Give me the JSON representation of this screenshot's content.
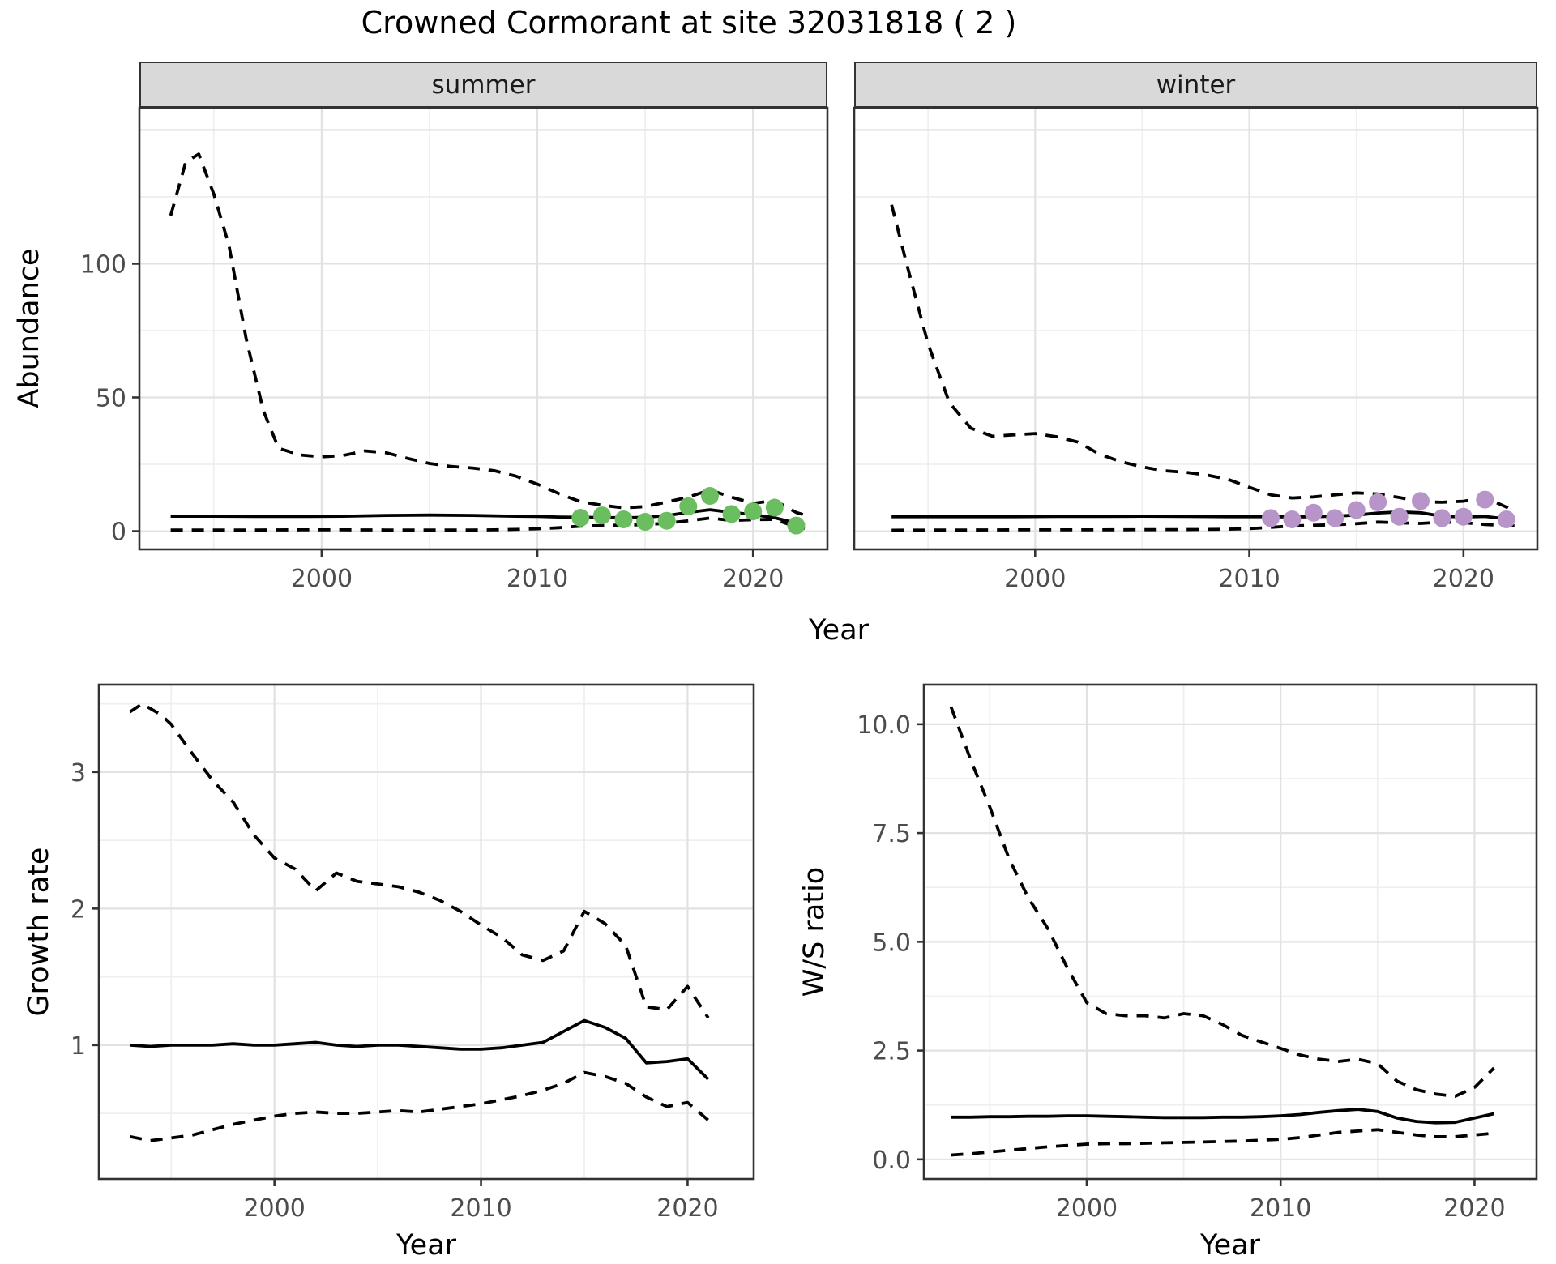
{
  "title": "Crowned Cormorant at site 32031818 ( 2 )",
  "colors": {
    "line": "#000000",
    "strip_bg": "#d9d9d9",
    "panel_border": "#333333",
    "grid_major": "#e2e2e2",
    "grid_minor": "#efefef",
    "tick_text": "#4d4d4d",
    "observation_summer": "#6abe60",
    "observation_winter": "#b795c8"
  },
  "chart_data": [
    {
      "id": "abundance_summer",
      "type": "line",
      "facet": "summer",
      "xlabel": "Year",
      "ylabel": "Abundance",
      "xlim": [
        1991.55,
        2023.45
      ],
      "ylim": [
        -6.8,
        158.3
      ],
      "x_ticks": [
        2000,
        2010,
        2020
      ],
      "x_minor": [
        1995,
        2005,
        2015
      ],
      "y_ticks": [
        0,
        50,
        100
      ],
      "y_tick_labels": [
        "0",
        "50",
        "100"
      ],
      "y_grid_major": [
        0,
        50,
        100,
        150
      ],
      "y_grid_minor": [
        25,
        75,
        125
      ],
      "grid": true,
      "legend": "none",
      "series": [
        {
          "name": "upper_ci",
          "style": "dashed",
          "x": [
            1993,
            1993.7,
            1994.3,
            1995,
            1995.7,
            1996.5,
            1997.3,
            1998,
            1999,
            2000,
            2001,
            2002,
            2003,
            2004,
            2005,
            2006,
            2007,
            2008,
            2009,
            2010,
            2011,
            2012,
            2013,
            2014,
            2015,
            2016,
            2017,
            2018,
            2019,
            2020,
            2021,
            2022,
            2022.4
          ],
          "y": [
            118,
            138,
            141,
            126,
            107,
            72,
            45,
            31,
            28.5,
            27.8,
            28.3,
            30,
            29.3,
            27.2,
            25.3,
            24.2,
            23.6,
            22.6,
            20.6,
            17.6,
            14,
            11,
            9.7,
            8.7,
            9.2,
            10.9,
            12.7,
            15.4,
            12.7,
            10.4,
            11.5,
            7,
            6
          ]
        },
        {
          "name": "median",
          "style": "solid",
          "x": [
            1993,
            1995,
            1997,
            1999,
            2001,
            2003,
            2005,
            2007,
            2009,
            2010,
            2011,
            2012,
            2013,
            2014,
            2015,
            2016,
            2017,
            2018,
            2019,
            2020,
            2021,
            2022,
            2022.4
          ],
          "y": [
            5.6,
            5.6,
            5.5,
            5.5,
            5.6,
            5.9,
            6.0,
            5.9,
            5.6,
            5.5,
            5.3,
            5.2,
            5.1,
            5.0,
            5.2,
            5.8,
            7.0,
            8.0,
            7.0,
            6.2,
            5.0,
            3.0,
            2.6
          ]
        },
        {
          "name": "lower_ci",
          "style": "dashed",
          "x": [
            1993,
            1995,
            1997,
            1999,
            2001,
            2003,
            2005,
            2007,
            2008,
            2009,
            2010,
            2011,
            2012,
            2013,
            2014,
            2015,
            2016,
            2017,
            2018,
            2019,
            2020,
            2021,
            2022,
            2022.4
          ],
          "y": [
            0.4,
            0.45,
            0.45,
            0.5,
            0.5,
            0.45,
            0.4,
            0.45,
            0.5,
            0.65,
            0.9,
            1.3,
            1.9,
            2.1,
            2.3,
            2.4,
            3.0,
            3.9,
            4.9,
            4.0,
            4.3,
            4.4,
            1.6,
            1.1
          ]
        },
        {
          "name": "observations",
          "style": "points",
          "color": "#6abe60",
          "x": [
            2012,
            2013,
            2014,
            2015,
            2016,
            2017,
            2018,
            2019,
            2020,
            2021,
            2022
          ],
          "y": [
            5.0,
            5.9,
            4.4,
            3.5,
            3.9,
            9.3,
            13.2,
            6.4,
            7.4,
            8.8,
            2.1
          ]
        }
      ]
    },
    {
      "id": "abundance_winter",
      "type": "line",
      "facet": "winter",
      "xlabel": "Year",
      "ylabel": "Abundance",
      "xlim": [
        1991.55,
        2023.45
      ],
      "ylim": [
        -6.8,
        158.3
      ],
      "x_ticks": [
        2000,
        2010,
        2020
      ],
      "x_minor": [
        1995,
        2005,
        2015
      ],
      "y_ticks": [
        0,
        50,
        100
      ],
      "y_tick_labels": [
        "0",
        "50",
        "100"
      ],
      "y_grid_major": [
        0,
        50,
        100,
        150
      ],
      "y_grid_minor": [
        25,
        75,
        125
      ],
      "grid": true,
      "legend": "none",
      "series": [
        {
          "name": "upper_ci",
          "style": "dashed",
          "x": [
            1993.3,
            1994,
            1995,
            1996,
            1997,
            1998,
            1999,
            2000,
            2001,
            2002,
            2003,
            2004,
            2005,
            2006,
            2007,
            2008,
            2009,
            2010,
            2011,
            2012,
            2013,
            2014,
            2015,
            2016,
            2017,
            2018,
            2019,
            2020,
            2021,
            2022,
            2022.4
          ],
          "y": [
            122,
            100,
            70,
            48,
            38.5,
            35.5,
            36,
            36.5,
            35.3,
            33.3,
            28.8,
            26,
            24,
            22.6,
            22,
            21,
            19.4,
            16.4,
            13.6,
            12.4,
            12.8,
            13.6,
            14.3,
            13.9,
            12.6,
            11,
            10.8,
            11.2,
            12.6,
            9,
            7.3
          ]
        },
        {
          "name": "median",
          "style": "solid",
          "x": [
            1993.3,
            1995,
            1997,
            1999,
            2001,
            2003,
            2005,
            2007,
            2009,
            2011,
            2012,
            2013,
            2014,
            2015,
            2016,
            2017,
            2018,
            2019,
            2020,
            2021,
            2022,
            2022.4
          ],
          "y": [
            5.4,
            5.4,
            5.4,
            5.4,
            5.5,
            5.5,
            5.6,
            5.5,
            5.4,
            5.4,
            5.3,
            5.4,
            5.6,
            6.0,
            6.8,
            7.2,
            6.9,
            5.6,
            5.3,
            5.5,
            4.6,
            4.4
          ]
        },
        {
          "name": "lower_ci",
          "style": "dashed",
          "x": [
            1993.3,
            1995,
            1997,
            1999,
            2001,
            2003,
            2005,
            2007,
            2008,
            2009,
            2010,
            2011,
            2012,
            2013,
            2014,
            2015,
            2016,
            2017,
            2018,
            2019,
            2020,
            2021,
            2022,
            2022.4
          ],
          "y": [
            0.35,
            0.4,
            0.45,
            0.5,
            0.5,
            0.5,
            0.55,
            0.6,
            0.65,
            0.75,
            0.95,
            1.4,
            2.0,
            2.2,
            2.4,
            2.8,
            3.4,
            3.1,
            2.9,
            3.4,
            3.2,
            2.5,
            2.1,
            2.0
          ]
        },
        {
          "name": "observations",
          "style": "points",
          "color": "#b795c8",
          "x": [
            2011,
            2012,
            2013,
            2014,
            2015,
            2016,
            2017,
            2018,
            2019,
            2020,
            2021,
            2022
          ],
          "y": [
            4.9,
            4.4,
            6.9,
            4.9,
            7.9,
            10.8,
            5.4,
            11.3,
            4.9,
            5.4,
            11.8,
            4.4
          ]
        }
      ]
    },
    {
      "id": "growth_rate",
      "type": "line",
      "facet": "",
      "xlabel": "Year",
      "ylabel": "Growth rate",
      "xlim": [
        1991.5,
        2023.2
      ],
      "ylim": [
        0.02,
        3.64
      ],
      "x_ticks": [
        2000,
        2010,
        2020
      ],
      "x_minor": [
        1995,
        2005,
        2015
      ],
      "y_ticks": [
        1,
        2,
        3
      ],
      "y_tick_labels": [
        "1",
        "2",
        "3"
      ],
      "y_grid_major": [
        1,
        2,
        3
      ],
      "y_grid_minor": [
        0.5,
        1.5,
        2.5,
        3.5
      ],
      "grid": true,
      "legend": "none",
      "series": [
        {
          "name": "upper_ci",
          "style": "dashed",
          "x": [
            1993,
            1993.6,
            1994.5,
            1995,
            1996,
            1997,
            1998,
            1999,
            2000,
            2001,
            2002,
            2003,
            2004,
            2005,
            2006,
            2007,
            2008,
            2009,
            2010,
            2011,
            2012,
            2013,
            2014,
            2015,
            2016,
            2017,
            2018,
            2019,
            2020,
            2021
          ],
          "y": [
            3.44,
            3.5,
            3.42,
            3.35,
            3.14,
            2.94,
            2.78,
            2.54,
            2.37,
            2.29,
            2.13,
            2.26,
            2.2,
            2.18,
            2.16,
            2.12,
            2.06,
            1.98,
            1.88,
            1.79,
            1.66,
            1.62,
            1.69,
            1.98,
            1.89,
            1.73,
            1.28,
            1.26,
            1.43,
            1.2
          ]
        },
        {
          "name": "median",
          "style": "solid",
          "x": [
            1993,
            1994,
            1995,
            1996,
            1997,
            1998,
            1999,
            2000,
            2001,
            2002,
            2003,
            2004,
            2005,
            2006,
            2007,
            2008,
            2009,
            2010,
            2011,
            2012,
            2013,
            2014,
            2015,
            2016,
            2017,
            2018,
            2019,
            2020,
            2021
          ],
          "y": [
            1.0,
            0.99,
            1.0,
            1.0,
            1.0,
            1.01,
            1.0,
            1.0,
            1.01,
            1.02,
            1.0,
            0.99,
            1.0,
            1.0,
            0.99,
            0.98,
            0.97,
            0.97,
            0.98,
            1.0,
            1.02,
            1.1,
            1.18,
            1.13,
            1.05,
            0.87,
            0.88,
            0.9,
            0.75
          ]
        },
        {
          "name": "lower_ci",
          "style": "dashed",
          "x": [
            1993,
            1994,
            1995,
            1996,
            1997,
            1998,
            1999,
            2000,
            2001,
            2002,
            2003,
            2004,
            2005,
            2006,
            2007,
            2008,
            2009,
            2010,
            2011,
            2012,
            2013,
            2014,
            2015,
            2016,
            2017,
            2018,
            2019,
            2020,
            2021
          ],
          "y": [
            0.33,
            0.3,
            0.32,
            0.34,
            0.38,
            0.42,
            0.45,
            0.48,
            0.5,
            0.51,
            0.5,
            0.5,
            0.51,
            0.52,
            0.51,
            0.53,
            0.55,
            0.57,
            0.6,
            0.63,
            0.67,
            0.72,
            0.8,
            0.77,
            0.72,
            0.62,
            0.55,
            0.58,
            0.45
          ]
        }
      ]
    },
    {
      "id": "ws_ratio",
      "type": "line",
      "facet": "",
      "xlabel": "Year",
      "ylabel": "W/S ratio",
      "xlim": [
        1991.6,
        2023.2
      ],
      "ylim": [
        -0.45,
        10.91
      ],
      "x_ticks": [
        2000,
        2010,
        2020
      ],
      "x_minor": [
        1995,
        2005,
        2015
      ],
      "y_ticks": [
        0,
        2.5,
        5,
        7.5,
        10
      ],
      "y_tick_labels": [
        "0.0",
        "2.5",
        "5.0",
        "7.5",
        "10.0"
      ],
      "y_grid_major": [
        0,
        2.5,
        5,
        7.5,
        10
      ],
      "y_grid_minor": [
        1.25,
        3.75,
        6.25,
        8.75
      ],
      "grid": true,
      "legend": "none",
      "series": [
        {
          "name": "upper_ci",
          "style": "dashed",
          "x": [
            1993,
            1994,
            1995,
            1996,
            1997,
            1998,
            1999,
            2000,
            2001,
            2002,
            2003,
            2004,
            2005,
            2006,
            2007,
            2008,
            2009,
            2010,
            2011,
            2012,
            2013,
            2014,
            2015,
            2016,
            2017,
            2018,
            2019,
            2020,
            2021
          ],
          "y": [
            10.4,
            9.2,
            8.1,
            6.9,
            6.0,
            5.3,
            4.4,
            3.6,
            3.35,
            3.3,
            3.3,
            3.25,
            3.35,
            3.3,
            3.1,
            2.85,
            2.7,
            2.55,
            2.4,
            2.3,
            2.25,
            2.3,
            2.2,
            1.8,
            1.6,
            1.5,
            1.45,
            1.65,
            2.1
          ]
        },
        {
          "name": "median",
          "style": "solid",
          "x": [
            1993,
            1994,
            1995,
            1996,
            1997,
            1998,
            1999,
            2000,
            2001,
            2002,
            2003,
            2004,
            2005,
            2006,
            2007,
            2008,
            2009,
            2010,
            2011,
            2012,
            2013,
            2014,
            2015,
            2016,
            2017,
            2018,
            2019,
            2020,
            2021
          ],
          "y": [
            0.97,
            0.97,
            0.98,
            0.98,
            0.99,
            0.99,
            1.0,
            1.0,
            0.99,
            0.98,
            0.97,
            0.96,
            0.96,
            0.96,
            0.97,
            0.97,
            0.98,
            1.0,
            1.03,
            1.08,
            1.12,
            1.15,
            1.1,
            0.95,
            0.87,
            0.84,
            0.85,
            0.95,
            1.05
          ]
        },
        {
          "name": "lower_ci",
          "style": "dashed",
          "x": [
            1993,
            1994,
            1995,
            1996,
            1997,
            1998,
            1999,
            2000,
            2001,
            2002,
            2003,
            2004,
            2005,
            2006,
            2007,
            2008,
            2009,
            2010,
            2011,
            2012,
            2013,
            2014,
            2015,
            2016,
            2017,
            2018,
            2019,
            2020,
            2021
          ],
          "y": [
            0.1,
            0.13,
            0.17,
            0.21,
            0.25,
            0.29,
            0.32,
            0.35,
            0.36,
            0.36,
            0.37,
            0.38,
            0.39,
            0.4,
            0.41,
            0.42,
            0.44,
            0.46,
            0.5,
            0.56,
            0.62,
            0.65,
            0.68,
            0.62,
            0.56,
            0.52,
            0.52,
            0.56,
            0.6
          ]
        }
      ]
    }
  ]
}
